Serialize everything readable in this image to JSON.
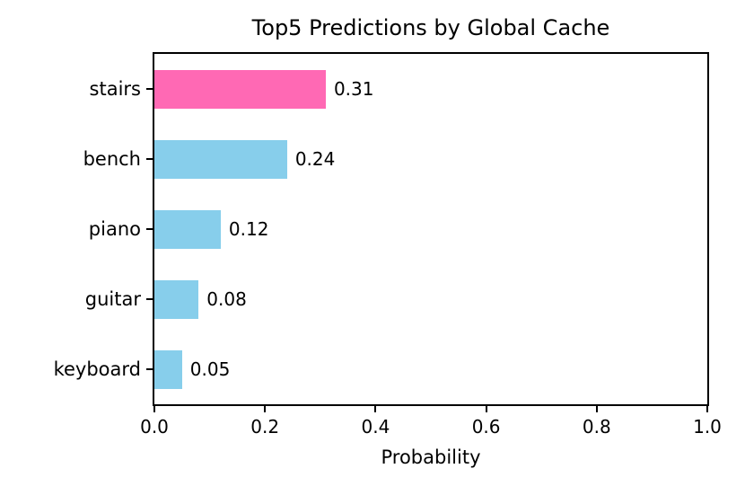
{
  "chart_data": {
    "type": "bar",
    "orientation": "horizontal",
    "title": "Top5 Predictions by Global Cache",
    "categories": [
      "stairs",
      "bench",
      "piano",
      "guitar",
      "keyboard"
    ],
    "values": [
      0.31,
      0.24,
      0.12,
      0.08,
      0.05
    ],
    "value_labels": [
      "0.31",
      "0.24",
      "0.12",
      "0.08",
      "0.05"
    ],
    "bar_colors": [
      "#FF69B4",
      "#87CEEB",
      "#87CEEB",
      "#87CEEB",
      "#87CEEB"
    ],
    "highlight_color": "#FF69B4",
    "default_color": "#87CEEB",
    "xlabel": "Probability",
    "ylabel": "",
    "xlim": [
      0.0,
      1.0
    ],
    "x_ticks": [
      0.0,
      0.2,
      0.4,
      0.6,
      0.8,
      1.0
    ],
    "x_tick_labels": [
      "0.0",
      "0.2",
      "0.4",
      "0.6",
      "0.8",
      "1.0"
    ],
    "grid": false,
    "legend": false,
    "axis_color": "#000000",
    "background_color": "#ffffff"
  }
}
